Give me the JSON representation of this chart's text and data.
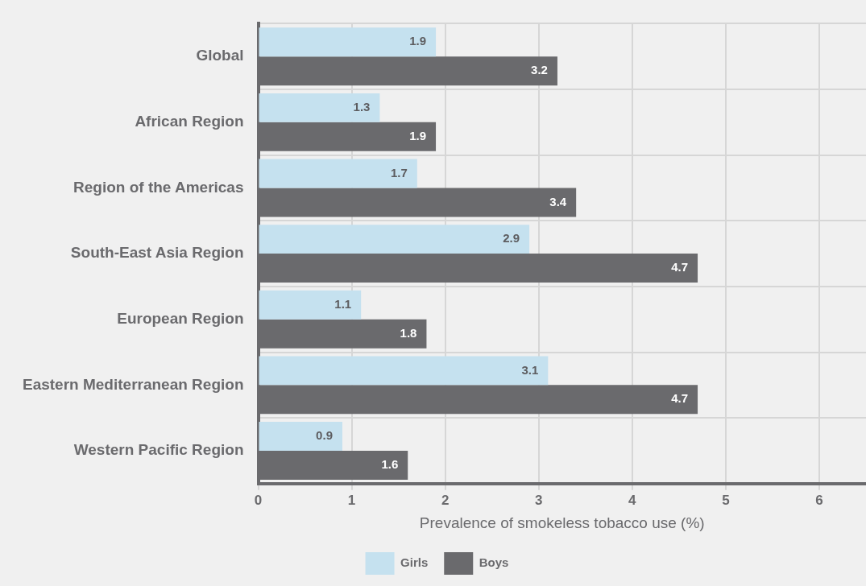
{
  "chart_data": {
    "type": "bar",
    "orientation": "horizontal",
    "categories": [
      "Global",
      "African Region",
      "Region of the Americas",
      "South-East Asia Region",
      "European Region",
      "Eastern Mediterranean Region",
      "Western Pacific Region"
    ],
    "series": [
      {
        "name": "Girls",
        "color": "#c5e1ef",
        "values": [
          1.9,
          1.3,
          1.7,
          2.9,
          1.1,
          3.1,
          0.9
        ]
      },
      {
        "name": "Boys",
        "color": "#6a6a6d",
        "values": [
          3.2,
          1.9,
          3.4,
          4.7,
          1.8,
          4.7,
          1.6
        ]
      }
    ],
    "xlabel": "Prevalence of smokeless tobacco use (%)",
    "xlim": [
      0,
      6.5
    ],
    "xticks": [
      0,
      1,
      2,
      3,
      4,
      5,
      6
    ],
    "grid": true,
    "legend": "bottom",
    "data_labels": true
  }
}
